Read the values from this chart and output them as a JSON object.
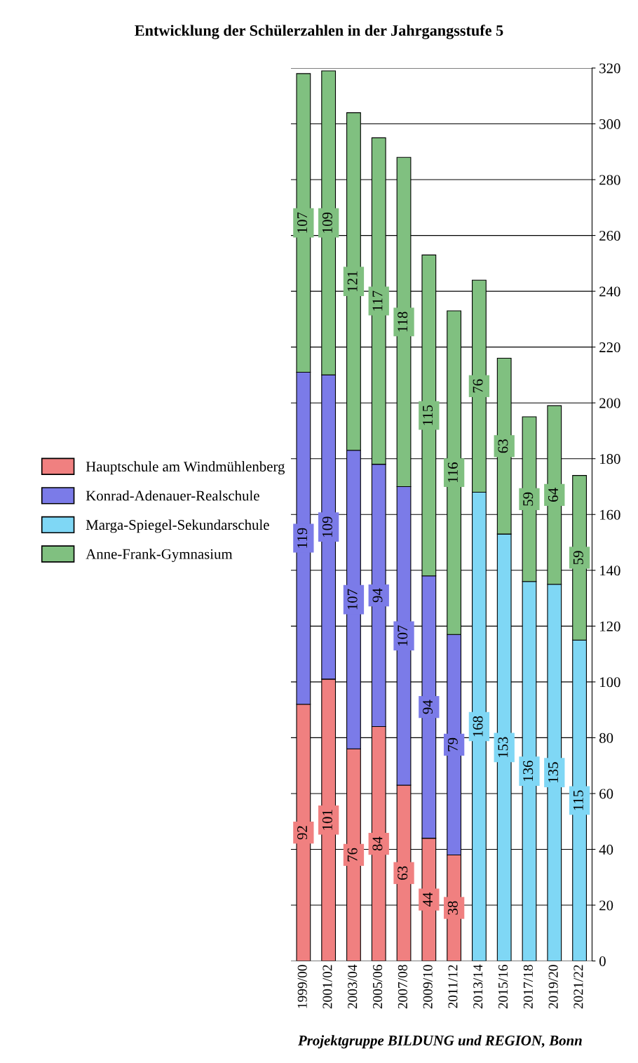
{
  "chart_data": {
    "type": "bar",
    "stacked": true,
    "title": "Entwicklung der Schülerzahlen in der Jahrgangsstufe 5",
    "categories": [
      "1999/00",
      "2001/02",
      "2003/04",
      "2005/06",
      "2007/08",
      "2009/10",
      "2011/12",
      "2013/14",
      "2015/16",
      "2017/18",
      "2019/20",
      "2021/22"
    ],
    "series": [
      {
        "name": "Hauptschule am Windmühlenberg",
        "color": "#f08080",
        "values": [
          92,
          101,
          76,
          84,
          63,
          44,
          38,
          null,
          null,
          null,
          null,
          null
        ]
      },
      {
        "name": "Konrad-Adenauer-Realschule",
        "color": "#7b7be8",
        "values": [
          119,
          109,
          107,
          94,
          107,
          94,
          79,
          null,
          null,
          null,
          null,
          null
        ]
      },
      {
        "name": "Marga-Spiegel-Sekundarschule",
        "color": "#7fd7f5",
        "values": [
          null,
          null,
          null,
          null,
          null,
          null,
          null,
          168,
          153,
          136,
          135,
          115
        ]
      },
      {
        "name": "Anne-Frank-Gymnasium",
        "color": "#80c080",
        "values": [
          107,
          109,
          121,
          117,
          118,
          115,
          116,
          76,
          63,
          59,
          64,
          59
        ]
      }
    ],
    "ylim": [
      0,
      320
    ],
    "yticks": [
      0,
      20,
      40,
      60,
      80,
      100,
      120,
      140,
      160,
      180,
      200,
      220,
      240,
      260,
      280,
      300,
      320
    ],
    "grid": "y",
    "legend": "left",
    "data_labels": true,
    "annotations": [
      "Projektgruppe BILDUNG und REGION, Bonn"
    ]
  }
}
